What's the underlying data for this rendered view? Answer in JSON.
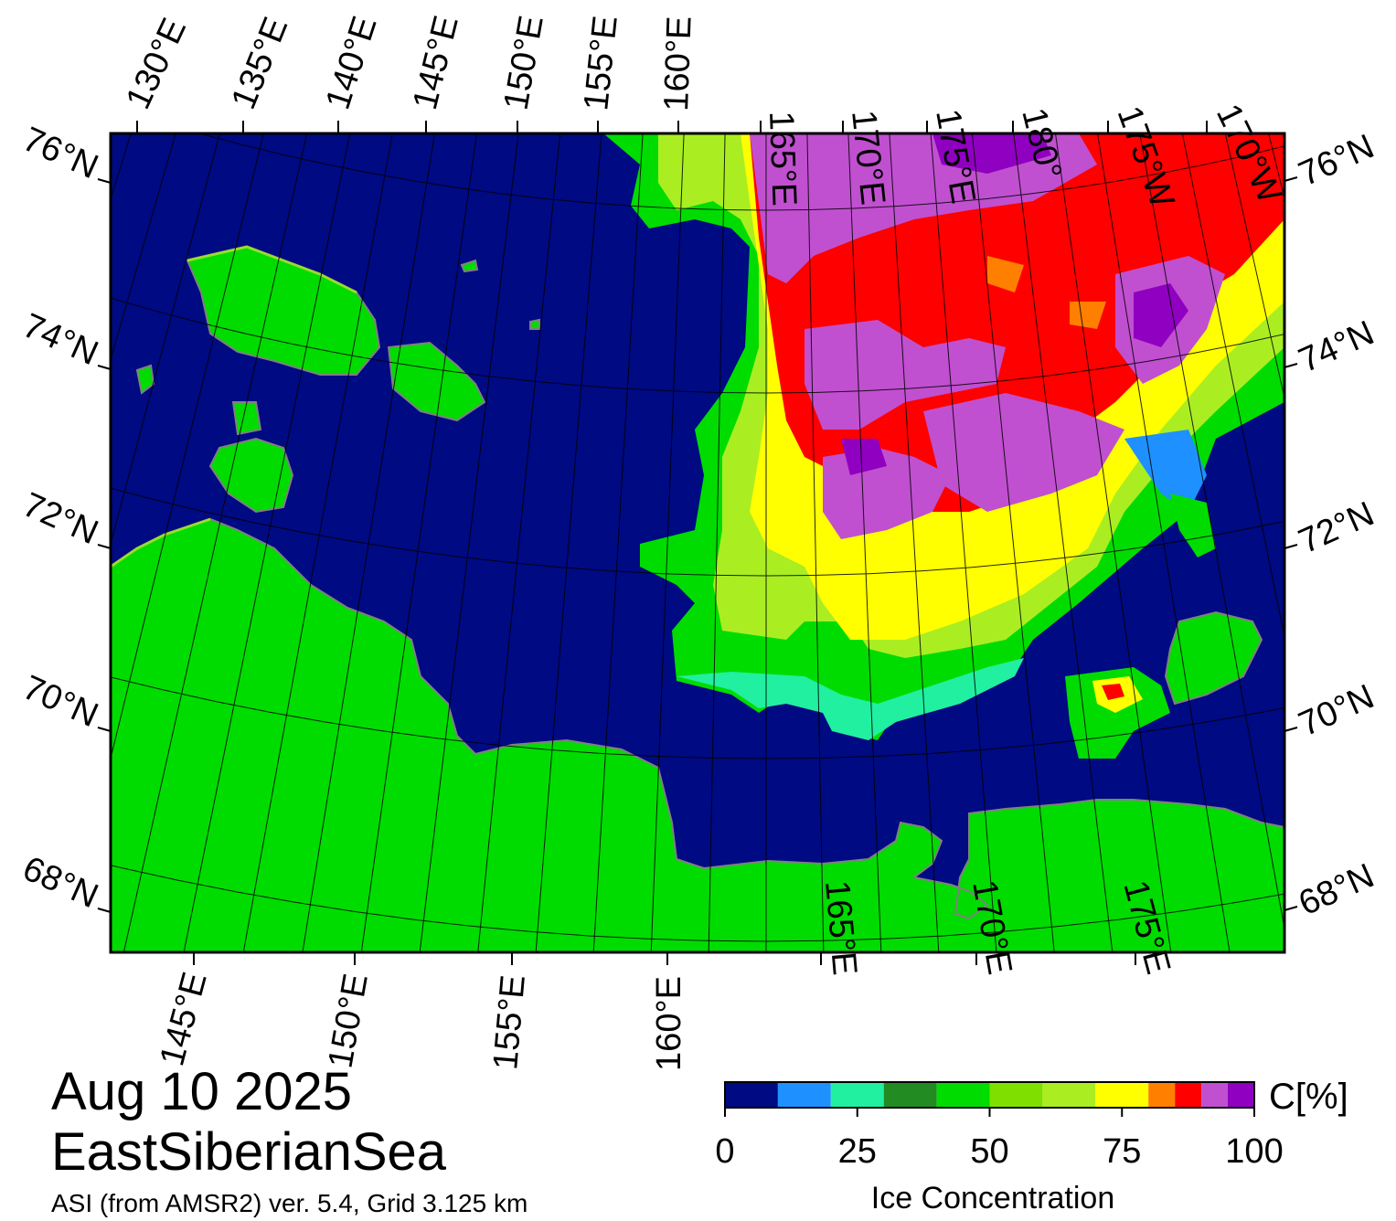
{
  "date": "Aug 10 2025",
  "region": "EastSiberianSea",
  "source": "ASI (from AMSR2) ver. 5.4,  Grid 3.125 km",
  "colors": {
    "water": "#000a82",
    "land": "#00dc00",
    "coast": "#808080",
    "frame": "#000000"
  },
  "map": {
    "top_lon_labels": [
      "130°E",
      "135°E",
      "140°E",
      "145°E",
      "150°E",
      "155°E",
      "160°E",
      "165°E",
      "170°E",
      "175°E",
      "180°",
      "175°W",
      "170°W"
    ],
    "bottom_lon_labels": [
      "145°E",
      "150°E",
      "155°E",
      "160°E",
      "165°E",
      "170°E",
      "175°E"
    ],
    "lat_labels": [
      "76°N",
      "74°N",
      "72°N",
      "70°N",
      "68°N"
    ]
  },
  "colorbar": {
    "label": "Ice Concentration",
    "unit": "C[%]",
    "ticks": [
      "0",
      "25",
      "50",
      "75",
      "100"
    ],
    "min": 0,
    "max": 100,
    "bins": [
      {
        "from": 0,
        "to": 10,
        "color": "#000a82"
      },
      {
        "from": 10,
        "to": 20,
        "color": "#1e90ff"
      },
      {
        "from": 20,
        "to": 30,
        "color": "#20f0a0"
      },
      {
        "from": 30,
        "to": 40,
        "color": "#228b22"
      },
      {
        "from": 40,
        "to": 50,
        "color": "#00dc00"
      },
      {
        "from": 50,
        "to": 60,
        "color": "#7fe000"
      },
      {
        "from": 60,
        "to": 70,
        "color": "#aaee22"
      },
      {
        "from": 70,
        "to": 80,
        "color": "#ffff00"
      },
      {
        "from": 80,
        "to": 85,
        "color": "#ff8000"
      },
      {
        "from": 85,
        "to": 90,
        "color": "#ff0000"
      },
      {
        "from": 90,
        "to": 95,
        "color": "#c050d0"
      },
      {
        "from": 95,
        "to": 100,
        "color": "#9000c0"
      }
    ]
  }
}
